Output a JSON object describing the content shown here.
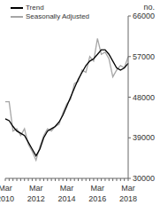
{
  "chart_data": {
    "type": "line",
    "ylabel": "no.",
    "categories": [
      "Mar 2010",
      null,
      null,
      null,
      null,
      null,
      null,
      null,
      "Mar 2012",
      null,
      null,
      null,
      null,
      null,
      null,
      null,
      "Mar 2014",
      null,
      null,
      null,
      null,
      null,
      null,
      null,
      "Mar 2016",
      null,
      null,
      null,
      null,
      null,
      null,
      null,
      "Mar 2018"
    ],
    "series": [
      {
        "name": "Trend",
        "color": "#000000",
        "values": [
          43200,
          42800,
          41500,
          40500,
          40000,
          39500,
          38000,
          36500,
          35000,
          36500,
          39000,
          40500,
          41000,
          41500,
          42500,
          44000,
          46000,
          48000,
          50000,
          52000,
          53500,
          55000,
          56000,
          56500,
          57500,
          58500,
          58500,
          57500,
          56000,
          54500,
          54000,
          54500,
          55500
        ]
      },
      {
        "name": "Seasonally Adjusted",
        "color": "#a6a6a6",
        "values": [
          47000,
          47000,
          40500,
          41000,
          39500,
          41000,
          37500,
          36000,
          34000,
          37000,
          39500,
          41000,
          40500,
          41500,
          42000,
          44500,
          46500,
          47500,
          51000,
          51500,
          54000,
          53500,
          57000,
          56000,
          61000,
          57500,
          58000,
          56500,
          52500,
          54000,
          55000,
          54500,
          57000
        ]
      }
    ],
    "ylim": [
      30000,
      66000
    ],
    "yticks": [
      30000,
      39000,
      48000,
      57000,
      66000
    ],
    "grid": false,
    "legend": "top-left"
  }
}
